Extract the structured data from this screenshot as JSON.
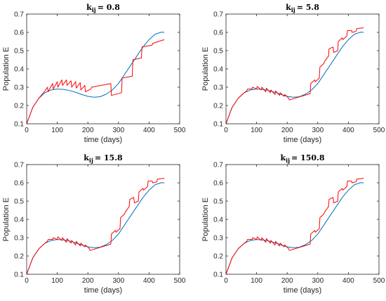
{
  "colors": {
    "fit": "#0072BD",
    "data": "#FF0000",
    "axis": "#262626"
  },
  "chart_data": [
    {
      "type": "line",
      "title_prefix": "k",
      "title_sub": "ij",
      "title_value": "= 0.8",
      "xlabel": "time (days)",
      "ylabel": "Population E",
      "xlim": [
        0,
        500
      ],
      "ylim": [
        0.1,
        0.7
      ],
      "xticks": [
        "0",
        "100",
        "200",
        "300",
        "400",
        "500"
      ],
      "yticks": [
        "0.1",
        "0.2",
        "0.3",
        "0.4",
        "0.5",
        "0.6",
        "0.7"
      ],
      "grid": false,
      "series": [
        {
          "color": "fit",
          "x": [
            0,
            20,
            40,
            60,
            80,
            100,
            120,
            140,
            160,
            180,
            200,
            220,
            240,
            260,
            280,
            300,
            320,
            340,
            360,
            380,
            400,
            420,
            440,
            450
          ],
          "y": [
            0.1,
            0.19,
            0.24,
            0.27,
            0.285,
            0.29,
            0.288,
            0.282,
            0.272,
            0.26,
            0.25,
            0.245,
            0.248,
            0.262,
            0.285,
            0.32,
            0.37,
            0.42,
            0.47,
            0.52,
            0.56,
            0.59,
            0.601,
            0.6
          ]
        },
        {
          "color": "data",
          "x": [
            0,
            20,
            40,
            60,
            68,
            70,
            85,
            87,
            100,
            102,
            115,
            117,
            130,
            132,
            145,
            147,
            160,
            162,
            175,
            177,
            190,
            192,
            210,
            212,
            275,
            277,
            310,
            312,
            345,
            347,
            375,
            377,
            410,
            412,
            450
          ],
          "y": [
            0.1,
            0.19,
            0.24,
            0.28,
            0.3,
            0.275,
            0.32,
            0.29,
            0.33,
            0.3,
            0.34,
            0.31,
            0.34,
            0.31,
            0.335,
            0.3,
            0.33,
            0.295,
            0.325,
            0.285,
            0.31,
            0.275,
            0.29,
            0.3,
            0.32,
            0.255,
            0.27,
            0.35,
            0.36,
            0.45,
            0.46,
            0.52,
            0.53,
            0.54,
            0.56
          ]
        }
      ]
    },
    {
      "type": "line",
      "title_prefix": "k",
      "title_sub": "ij",
      "title_value": "= 5.8",
      "xlabel": "time (days)",
      "ylabel": "Population E",
      "xlim": [
        0,
        500
      ],
      "ylim": [
        0.1,
        0.7
      ],
      "xticks": [
        "0",
        "100",
        "200",
        "300",
        "400",
        "500"
      ],
      "yticks": [
        "0.1",
        "0.2",
        "0.3",
        "0.4",
        "0.5",
        "0.6",
        "0.7"
      ],
      "grid": false,
      "series": [
        {
          "color": "fit",
          "x": [
            0,
            20,
            40,
            60,
            80,
            100,
            120,
            140,
            160,
            180,
            200,
            220,
            240,
            260,
            280,
            300,
            320,
            340,
            360,
            380,
            400,
            420,
            440,
            450
          ],
          "y": [
            0.1,
            0.19,
            0.24,
            0.27,
            0.285,
            0.29,
            0.288,
            0.282,
            0.272,
            0.26,
            0.25,
            0.245,
            0.248,
            0.262,
            0.285,
            0.32,
            0.37,
            0.42,
            0.47,
            0.52,
            0.56,
            0.59,
            0.601,
            0.6
          ]
        },
        {
          "color": "data",
          "x": [
            0,
            20,
            40,
            60,
            68,
            70,
            85,
            87,
            100,
            102,
            115,
            117,
            130,
            132,
            145,
            147,
            160,
            162,
            175,
            177,
            190,
            192,
            205,
            207,
            275,
            277,
            290,
            292,
            305,
            307,
            320,
            322,
            335,
            337,
            350,
            352,
            365,
            367,
            380,
            382,
            395,
            397,
            410,
            412,
            425,
            427,
            450
          ],
          "y": [
            0.1,
            0.19,
            0.24,
            0.27,
            0.28,
            0.29,
            0.29,
            0.3,
            0.29,
            0.305,
            0.285,
            0.3,
            0.275,
            0.295,
            0.27,
            0.285,
            0.26,
            0.28,
            0.255,
            0.27,
            0.25,
            0.26,
            0.24,
            0.23,
            0.265,
            0.32,
            0.34,
            0.33,
            0.35,
            0.41,
            0.43,
            0.44,
            0.47,
            0.51,
            0.52,
            0.49,
            0.5,
            0.55,
            0.57,
            0.56,
            0.58,
            0.61,
            0.61,
            0.6,
            0.605,
            0.62,
            0.625
          ]
        }
      ]
    },
    {
      "type": "line",
      "title_prefix": "k",
      "title_sub": "ij",
      "title_value": "= 15.8",
      "xlabel": "time (days)",
      "ylabel": "Population E",
      "xlim": [
        0,
        500
      ],
      "ylim": [
        0.1,
        0.7
      ],
      "xticks": [
        "0",
        "100",
        "200",
        "300",
        "400",
        "500"
      ],
      "yticks": [
        "0.1",
        "0.2",
        "0.3",
        "0.4",
        "0.5",
        "0.6",
        "0.7"
      ],
      "grid": false,
      "series": [
        {
          "color": "fit",
          "x": [
            0,
            20,
            40,
            60,
            80,
            100,
            120,
            140,
            160,
            180,
            200,
            220,
            240,
            260,
            280,
            300,
            320,
            340,
            360,
            380,
            400,
            420,
            440,
            450
          ],
          "y": [
            0.1,
            0.19,
            0.24,
            0.27,
            0.285,
            0.29,
            0.288,
            0.282,
            0.272,
            0.26,
            0.25,
            0.245,
            0.248,
            0.262,
            0.285,
            0.32,
            0.37,
            0.42,
            0.47,
            0.52,
            0.56,
            0.59,
            0.601,
            0.6
          ]
        },
        {
          "color": "data",
          "x": [
            0,
            20,
            40,
            60,
            68,
            70,
            85,
            87,
            100,
            102,
            115,
            117,
            130,
            132,
            145,
            147,
            160,
            162,
            175,
            177,
            190,
            192,
            205,
            207,
            275,
            277,
            290,
            292,
            305,
            307,
            320,
            322,
            335,
            337,
            350,
            352,
            365,
            367,
            380,
            382,
            395,
            397,
            410,
            412,
            425,
            427,
            450
          ],
          "y": [
            0.1,
            0.19,
            0.24,
            0.27,
            0.28,
            0.29,
            0.29,
            0.3,
            0.29,
            0.305,
            0.285,
            0.3,
            0.275,
            0.295,
            0.27,
            0.285,
            0.26,
            0.28,
            0.255,
            0.27,
            0.25,
            0.26,
            0.24,
            0.23,
            0.265,
            0.32,
            0.34,
            0.33,
            0.35,
            0.41,
            0.43,
            0.44,
            0.47,
            0.51,
            0.52,
            0.49,
            0.5,
            0.55,
            0.57,
            0.56,
            0.58,
            0.61,
            0.61,
            0.6,
            0.605,
            0.62,
            0.625
          ]
        }
      ]
    },
    {
      "type": "line",
      "title_prefix": "k",
      "title_sub": "ij",
      "title_value": "= 150.8",
      "xlabel": "time (days)",
      "ylabel": "Population E",
      "xlim": [
        0,
        500
      ],
      "ylim": [
        0.1,
        0.7
      ],
      "xticks": [
        "0",
        "100",
        "200",
        "300",
        "400",
        "500"
      ],
      "yticks": [
        "0.1",
        "0.2",
        "0.3",
        "0.4",
        "0.5",
        "0.6",
        "0.7"
      ],
      "grid": false,
      "series": [
        {
          "color": "fit",
          "x": [
            0,
            20,
            40,
            60,
            80,
            100,
            120,
            140,
            160,
            180,
            200,
            220,
            240,
            260,
            280,
            300,
            320,
            340,
            360,
            380,
            400,
            420,
            440,
            450
          ],
          "y": [
            0.1,
            0.19,
            0.24,
            0.27,
            0.285,
            0.29,
            0.288,
            0.282,
            0.272,
            0.26,
            0.25,
            0.245,
            0.248,
            0.262,
            0.285,
            0.32,
            0.37,
            0.42,
            0.47,
            0.52,
            0.56,
            0.59,
            0.601,
            0.6
          ]
        },
        {
          "color": "data",
          "x": [
            0,
            20,
            40,
            60,
            68,
            70,
            85,
            87,
            100,
            102,
            115,
            117,
            130,
            132,
            145,
            147,
            160,
            162,
            175,
            177,
            190,
            192,
            205,
            207,
            275,
            277,
            290,
            292,
            305,
            307,
            320,
            322,
            335,
            337,
            350,
            352,
            365,
            367,
            380,
            382,
            395,
            397,
            410,
            412,
            425,
            427,
            450
          ],
          "y": [
            0.1,
            0.19,
            0.24,
            0.27,
            0.28,
            0.29,
            0.29,
            0.3,
            0.29,
            0.305,
            0.285,
            0.3,
            0.275,
            0.295,
            0.27,
            0.285,
            0.26,
            0.28,
            0.255,
            0.27,
            0.25,
            0.26,
            0.24,
            0.23,
            0.265,
            0.32,
            0.34,
            0.33,
            0.35,
            0.41,
            0.43,
            0.44,
            0.47,
            0.51,
            0.52,
            0.49,
            0.5,
            0.55,
            0.57,
            0.56,
            0.58,
            0.61,
            0.61,
            0.6,
            0.605,
            0.62,
            0.625
          ]
        }
      ]
    }
  ]
}
